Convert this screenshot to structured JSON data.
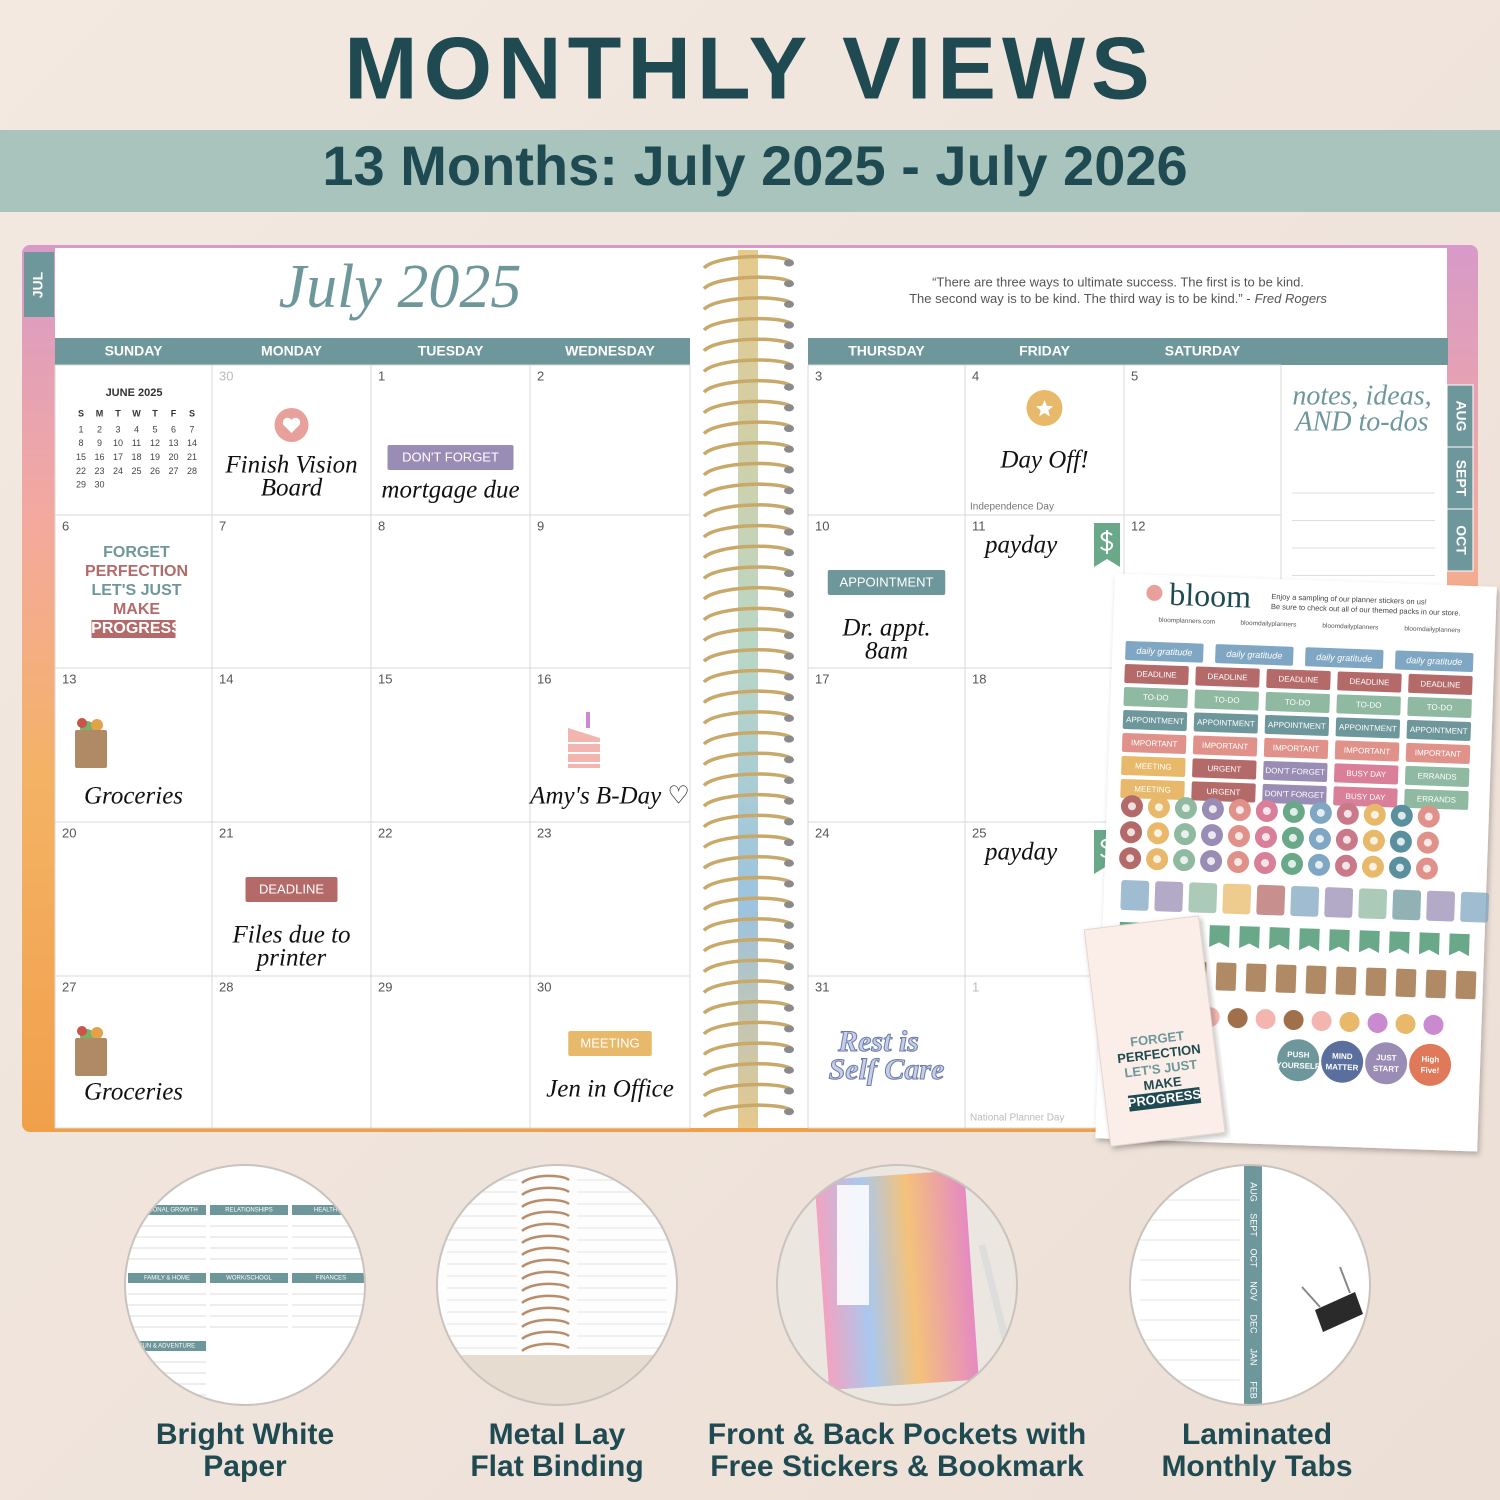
{
  "header": {
    "title": "MONTHLY VIEWS",
    "subtitle": "13 Months: July 2025 - July 2026"
  },
  "planner": {
    "tab": "JUL",
    "month": "July 2025",
    "quote": [
      "“There are three ways to ultimate success. The first is to be kind.",
      "The second way is to be kind. The third way is to be kind.” -"
    ],
    "quote_author": "Fred Rogers",
    "weekdays": [
      "SUNDAY",
      "MONDAY",
      "TUESDAY",
      "WEDNESDAY",
      "THURSDAY",
      "FRIDAY",
      "SATURDAY"
    ],
    "side_tabs": [
      "AUG",
      "SEPT",
      "OCT"
    ],
    "notes_title": [
      "notes, ideas,",
      "AND to-dos"
    ],
    "mini_calendar": {
      "title": "JUNE 2025",
      "weekdays": [
        "S",
        "M",
        "T",
        "W",
        "T",
        "F",
        "S"
      ],
      "days": [
        1,
        2,
        3,
        4,
        5,
        6,
        7,
        8,
        9,
        10,
        11,
        12,
        13,
        14,
        15,
        16,
        17,
        18,
        19,
        20,
        21,
        22,
        23,
        24,
        25,
        26,
        27,
        28,
        29,
        30
      ]
    },
    "weeks": [
      [
        null,
        {
          "day": 30,
          "note": [
            "Finish Vision",
            "Board"
          ]
        },
        {
          "day": 1,
          "sticker": {
            "text": "DON'T FORGET",
            "color": "#9a8db5"
          },
          "note": [
            "mortgage due"
          ]
        },
        {
          "day": 2
        },
        {
          "day": 3
        },
        {
          "day": 4,
          "note": [
            "Day Off!"
          ],
          "holiday": "Independence Day"
        },
        {
          "day": 5
        }
      ],
      [
        {
          "day": 6,
          "art": [
            "FORGET",
            "PERFECTION",
            "LET'S JUST",
            "MAKE",
            "PROGRESS"
          ]
        },
        {
          "day": 7
        },
        {
          "day": 8
        },
        {
          "day": 9
        },
        {
          "day": 10,
          "sticker": {
            "text": "APPOINTMENT",
            "color": "#6e979b"
          },
          "note": [
            "Dr. appt.",
            "8am"
          ]
        },
        {
          "day": 11,
          "note": [
            "payday"
          ]
        },
        {
          "day": 12
        }
      ],
      [
        {
          "day": 13,
          "note": [
            "Groceries"
          ]
        },
        {
          "day": 14
        },
        {
          "day": 15
        },
        {
          "day": 16,
          "note": [
            "Amy's B-Day ♡"
          ]
        },
        {
          "day": 17
        },
        {
          "day": 18
        },
        null
      ],
      [
        {
          "day": 20
        },
        {
          "day": 21,
          "sticker": {
            "text": "DEADLINE",
            "color": "#b56a6a"
          },
          "note": [
            "Files due to",
            "printer"
          ]
        },
        {
          "day": 22
        },
        {
          "day": 23
        },
        {
          "day": 24
        },
        {
          "day": 25,
          "note": [
            "payday"
          ]
        },
        null
      ],
      [
        {
          "day": 27,
          "note": [
            "Groceries"
          ]
        },
        {
          "day": 28
        },
        {
          "day": 29
        },
        {
          "day": 30,
          "sticker": {
            "text": "MEETING",
            "color": "#e8b96a"
          },
          "note": [
            "Jen in Office"
          ]
        },
        {
          "day": 31,
          "art": [
            "Rest is",
            "Self Care"
          ]
        },
        {
          "day": 1,
          "holiday": "National Planner Day"
        },
        null
      ]
    ]
  },
  "sticker_sheet": {
    "brand": "bloom",
    "blurb": [
      "Enjoy a sampling of our planner stickers on us!",
      "Be sure to check out all of our themed packs in our store."
    ],
    "links": [
      "bloomplanners.com",
      "bloomdailyplanners",
      "bloomdailyplanners",
      "bloomdailyplanners"
    ],
    "rows": [
      {
        "labels": [
          "daily gratitude",
          "daily gratitude",
          "daily gratitude",
          "daily gratitude"
        ],
        "colors": [
          "#7fa6c2",
          "#7fa6c2",
          "#7fa6c2",
          "#7fa6c2"
        ]
      },
      {
        "labels": [
          "DEADLINE",
          "DEADLINE",
          "DEADLINE",
          "DEADLINE",
          "DEADLINE"
        ],
        "colors": [
          "#b56a6a",
          "#b56a6a",
          "#b56a6a",
          "#b56a6a",
          "#b56a6a"
        ]
      },
      {
        "labels": [
          "TO-DO",
          "TO-DO",
          "TO-DO",
          "TO-DO",
          "TO-DO"
        ],
        "colors": [
          "#8fb9a0",
          "#8fb9a0",
          "#8fb9a0",
          "#8fb9a0",
          "#8fb9a0"
        ]
      },
      {
        "labels": [
          "APPOINTMENT",
          "APPOINTMENT",
          "APPOINTMENT",
          "APPOINTMENT",
          "APPOINTMENT"
        ],
        "colors": [
          "#6e979b",
          "#6e979b",
          "#6e979b",
          "#6e979b",
          "#6e979b"
        ]
      },
      {
        "labels": [
          "IMPORTANT",
          "IMPORTANT",
          "IMPORTANT",
          "IMPORTANT",
          "IMPORTANT"
        ],
        "colors": [
          "#e0928a",
          "#e0928a",
          "#e0928a",
          "#e0928a",
          "#e0928a"
        ]
      },
      {
        "labels": [
          "MEETING",
          "URGENT",
          "DON'T FORGET",
          "BUSY DAY",
          "ERRANDS"
        ],
        "colors": [
          "#e8b96a",
          "#b56a6a",
          "#9a8db5",
          "#d97f9a",
          "#8fb9a0"
        ]
      },
      {
        "labels": [
          "MEETING",
          "URGENT",
          "DON'T FORGET",
          "BUSY DAY",
          "ERRANDS"
        ],
        "colors": [
          "#e8b96a",
          "#b56a6a",
          "#9a8db5",
          "#d97f9a",
          "#8fb9a0"
        ]
      }
    ],
    "round_stickers": [
      {
        "lines": [
          "PUSH",
          "YOURSELF"
        ],
        "color": "#6e979b"
      },
      {
        "lines": [
          "MIND",
          "MATTER"
        ],
        "color": "#5a6f9e"
      },
      {
        "lines": [
          "JUST",
          "START"
        ],
        "color": "#9a8db5"
      },
      {
        "lines": [
          "High",
          "Five!"
        ],
        "color": "#e0785a"
      }
    ],
    "bookmark": [
      "FORGET",
      "PERFECTION",
      "LET'S JUST",
      "MAKE",
      "PROGRESS"
    ]
  },
  "features": [
    {
      "lines": [
        "Bright White",
        "Paper"
      ],
      "labels": [
        "PERSONAL GROWTH",
        "RELATIONSHIPS",
        "HEALTH & F",
        "FAMILY & HOME",
        "WORK/SCHOOL",
        "FINANCES",
        "FUN & ADVENTURE"
      ]
    },
    {
      "lines": [
        "Metal Lay",
        "Flat Binding"
      ]
    },
    {
      "lines": [
        "Front & Back Pockets with",
        "Free Stickers & Bookmark"
      ]
    },
    {
      "lines": [
        "Laminated",
        "Monthly Tabs"
      ],
      "labels": [
        "AUG",
        "SEPT",
        "OCT",
        "NOV",
        "DEC",
        "JAN",
        "FEB"
      ]
    }
  ]
}
